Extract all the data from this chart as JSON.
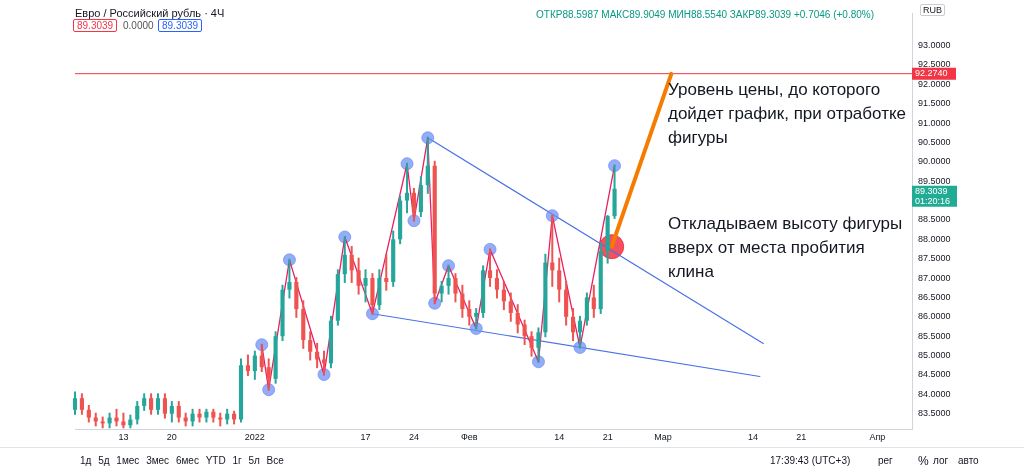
{
  "chart_data": {
    "type": "candlestick",
    "title": "Евро / Российский рубль · 4Ч",
    "x": [
      "2021-12-06",
      "2021-12-07",
      "2021-12-08",
      "2021-12-09",
      "2021-12-10",
      "2021-12-11",
      "2021-12-12",
      "2021-12-13",
      "2021-12-14",
      "2021-12-15",
      "2021-12-16",
      "2021-12-17",
      "2021-12-18",
      "2021-12-19",
      "2021-12-20",
      "2021-12-21",
      "2021-12-22",
      "2021-12-23",
      "2021-12-24",
      "2021-12-25",
      "2021-12-26",
      "2021-12-27",
      "2021-12-28",
      "2021-12-29",
      "2021-12-30",
      "2021-12-31",
      "2022-01-01",
      "2022-01-02",
      "2022-01-03",
      "2022-01-04",
      "2022-01-05",
      "2022-01-06",
      "2022-01-07",
      "2022-01-08",
      "2022-01-09",
      "2022-01-10",
      "2022-01-11",
      "2022-01-12",
      "2022-01-13",
      "2022-01-14",
      "2022-01-15",
      "2022-01-16",
      "2022-01-17",
      "2022-01-18",
      "2022-01-19",
      "2022-01-20",
      "2022-01-21",
      "2022-01-22",
      "2022-01-23",
      "2022-01-24",
      "2022-01-25",
      "2022-01-26",
      "2022-01-27",
      "2022-01-28",
      "2022-01-29",
      "2022-01-30",
      "2022-01-31",
      "2022-02-01",
      "2022-02-02",
      "2022-02-03",
      "2022-02-04",
      "2022-02-05",
      "2022-02-06",
      "2022-02-07",
      "2022-02-08",
      "2022-02-09",
      "2022-02-10",
      "2022-02-11",
      "2022-02-12",
      "2022-02-13",
      "2022-02-14",
      "2022-02-15",
      "2022-02-16",
      "2022-02-17",
      "2022-02-18",
      "2022-02-19",
      "2022-02-20",
      "2022-02-21",
      "2022-02-22"
    ],
    "ohlc": [
      [
        83.6,
        84.05,
        83.5,
        83.9
      ],
      [
        83.9,
        84.0,
        83.5,
        83.6
      ],
      [
        83.6,
        83.7,
        83.3,
        83.4
      ],
      [
        83.4,
        83.5,
        83.2,
        83.3
      ],
      [
        83.3,
        83.4,
        83.15,
        83.25
      ],
      [
        83.25,
        83.5,
        83.15,
        83.4
      ],
      [
        83.4,
        83.6,
        83.2,
        83.3
      ],
      [
        83.3,
        83.5,
        83.15,
        83.2
      ],
      [
        83.2,
        83.45,
        83.15,
        83.35
      ],
      [
        83.35,
        83.8,
        83.25,
        83.7
      ],
      [
        83.7,
        84.0,
        83.6,
        83.9
      ],
      [
        83.9,
        84.0,
        83.5,
        83.6
      ],
      [
        83.6,
        84.0,
        83.5,
        83.9
      ],
      [
        83.9,
        84.0,
        83.4,
        83.5
      ],
      [
        83.5,
        83.8,
        83.3,
        83.7
      ],
      [
        83.7,
        83.8,
        83.3,
        83.4
      ],
      [
        83.4,
        83.5,
        83.2,
        83.3
      ],
      [
        83.3,
        83.6,
        83.2,
        83.5
      ],
      [
        83.5,
        83.6,
        83.3,
        83.4
      ],
      [
        83.4,
        83.6,
        83.3,
        83.55
      ],
      [
        83.55,
        83.6,
        83.3,
        83.4
      ],
      [
        83.4,
        83.5,
        83.2,
        83.35
      ],
      [
        83.35,
        83.6,
        83.25,
        83.5
      ],
      [
        83.5,
        83.55,
        83.25,
        83.35
      ],
      [
        83.35,
        84.9,
        83.3,
        84.75
      ],
      [
        84.75,
        85.0,
        84.5,
        84.6
      ],
      [
        84.6,
        85.1,
        84.4,
        85.0
      ],
      [
        85.0,
        85.28,
        84.6,
        84.7
      ],
      [
        84.7,
        84.9,
        84.12,
        84.4
      ],
      [
        84.4,
        85.6,
        84.3,
        85.5
      ],
      [
        85.5,
        86.8,
        85.4,
        86.7
      ],
      [
        86.7,
        87.47,
        86.5,
        86.9
      ],
      [
        86.9,
        87.0,
        86.0,
        86.2
      ],
      [
        86.2,
        86.4,
        85.2,
        85.4
      ],
      [
        85.4,
        85.6,
        84.9,
        85.1
      ],
      [
        85.1,
        85.3,
        84.7,
        84.9
      ],
      [
        84.9,
        85.1,
        84.51,
        84.8
      ],
      [
        84.8,
        86.0,
        84.7,
        85.9
      ],
      [
        85.9,
        87.2,
        85.8,
        87.1
      ],
      [
        87.1,
        88.06,
        86.9,
        87.6
      ],
      [
        87.6,
        87.8,
        86.9,
        87.2
      ],
      [
        87.2,
        87.5,
        86.6,
        86.8
      ],
      [
        86.8,
        87.2,
        86.4,
        87.0
      ],
      [
        87.0,
        87.1,
        86.08,
        86.3
      ],
      [
        86.3,
        87.2,
        86.2,
        87.0
      ],
      [
        87.0,
        87.6,
        86.7,
        86.9
      ],
      [
        86.9,
        88.2,
        86.8,
        88.0
      ],
      [
        88.0,
        89.1,
        87.9,
        89.0
      ],
      [
        89.0,
        89.95,
        88.7,
        89.2
      ],
      [
        89.2,
        89.3,
        88.48,
        88.7
      ],
      [
        88.7,
        89.6,
        88.6,
        89.4
      ],
      [
        89.4,
        90.62,
        89.2,
        89.9
      ],
      [
        89.9,
        90.0,
        86.35,
        86.6
      ],
      [
        86.6,
        86.9,
        86.4,
        86.8
      ],
      [
        86.8,
        87.32,
        86.6,
        87.0
      ],
      [
        87.0,
        87.1,
        86.4,
        86.6
      ],
      [
        86.6,
        86.8,
        86.0,
        86.2
      ],
      [
        86.2,
        86.4,
        85.8,
        86.0
      ],
      [
        86.0,
        86.2,
        85.7,
        86.1
      ],
      [
        86.1,
        87.3,
        86.0,
        87.2
      ],
      [
        87.2,
        87.74,
        86.8,
        87.0
      ],
      [
        87.0,
        87.2,
        86.5,
        86.7
      ],
      [
        86.7,
        86.9,
        86.2,
        86.4
      ],
      [
        86.4,
        86.6,
        85.9,
        86.1
      ],
      [
        86.1,
        86.3,
        85.6,
        85.8
      ],
      [
        85.8,
        85.9,
        85.3,
        85.5
      ],
      [
        85.5,
        85.6,
        85.0,
        85.2
      ],
      [
        85.2,
        85.7,
        84.84,
        85.6
      ],
      [
        85.6,
        87.6,
        85.5,
        87.4
      ],
      [
        87.4,
        88.61,
        86.8,
        87.2
      ],
      [
        87.2,
        87.5,
        86.4,
        86.7
      ],
      [
        86.7,
        86.9,
        85.8,
        86.0
      ],
      [
        86.0,
        86.2,
        85.4,
        85.6
      ],
      [
        85.6,
        86.0,
        85.21,
        85.9
      ],
      [
        85.9,
        86.6,
        85.8,
        86.5
      ],
      [
        86.5,
        86.8,
        86.0,
        86.2
      ],
      [
        86.2,
        87.9,
        86.1,
        87.7
      ],
      [
        87.7,
        88.6,
        87.4,
        88.6
      ],
      [
        88.5987,
        89.9049,
        88.554,
        89.3039
      ]
    ],
    "series": [
      {
        "type": "line",
        "color": "#e91e63",
        "x": [
          "2022-01-02",
          "2022-01-03",
          "2022-01-06",
          "2022-01-11",
          "2022-01-14",
          "2022-01-18",
          "2022-01-23",
          "2022-01-24",
          "2022-01-26",
          "2022-01-27",
          "2022-01-29",
          "2022-02-02",
          "2022-02-04",
          "2022-02-11",
          "2022-02-13",
          "2022-02-17",
          "2022-02-22"
        ],
        "values": [
          85.28,
          84.12,
          87.47,
          84.51,
          88.06,
          86.08,
          89.95,
          88.48,
          90.62,
          86.35,
          87.32,
          85.7,
          87.74,
          84.84,
          88.61,
          85.21,
          89.9
        ]
      },
      {
        "type": "scatter",
        "color": "#6d8ff5",
        "marker": "circle",
        "x": [
          "2022-01-02",
          "2022-01-03",
          "2022-01-06",
          "2022-01-11",
          "2022-01-14",
          "2022-01-18",
          "2022-01-23",
          "2022-01-24",
          "2022-01-26",
          "2022-01-27",
          "2022-01-29",
          "2022-02-02",
          "2022-02-04",
          "2022-02-11",
          "2022-02-13",
          "2022-02-17",
          "2022-02-22"
        ],
        "values": [
          85.28,
          84.12,
          87.47,
          84.51,
          88.06,
          86.08,
          89.95,
          88.48,
          90.62,
          86.35,
          87.32,
          85.7,
          87.74,
          84.84,
          88.61,
          85.21,
          89.9
        ]
      },
      {
        "type": "line",
        "color": "#4a72e8",
        "x": [
          "2022-01-26",
          "2022-03-15T12:00"
        ],
        "values": [
          90.62,
          85.31
        ]
      },
      {
        "type": "line",
        "color": "#4a72e8",
        "x": [
          "2022-01-18",
          "2022-03-15T00:00"
        ],
        "values": [
          86.08,
          84.46
        ]
      },
      {
        "type": "line",
        "color": "#f57c00",
        "x": [
          "2022-02-21T14:00",
          "2022-03-02T05:00"
        ],
        "values": [
          87.81,
          92.27
        ]
      },
      {
        "type": "bubble",
        "color": "#f23645",
        "x": [
          "2022-02-21T14:00"
        ],
        "values": [
          87.81
        ],
        "sizes": [
          1
        ]
      }
    ],
    "ref_lines": [
      {
        "axis": "y",
        "value": 92.274,
        "label": "92.2740",
        "color": "#f23645"
      }
    ],
    "xlim": [
      "2021-12-06",
      "2022-04-06"
    ],
    "xticks": [
      {
        "value": "2021-12-13",
        "label": "13"
      },
      {
        "value": "2021-12-20",
        "label": "20"
      },
      {
        "value": "2022-01-01",
        "label": "2022"
      },
      {
        "value": "2022-01-17",
        "label": "17"
      },
      {
        "value": "2022-01-24",
        "label": "24"
      },
      {
        "value": "2022-02-01",
        "label": "Фев"
      },
      {
        "value": "2022-02-14",
        "label": "14"
      },
      {
        "value": "2022-02-21",
        "label": "21"
      },
      {
        "value": "2022-03-01",
        "label": "Мар"
      },
      {
        "value": "2022-03-14",
        "label": "14"
      },
      {
        "value": "2022-03-21",
        "label": "21"
      },
      {
        "value": "2022-04-01",
        "label": "Апр"
      }
    ],
    "ylim": [
      83.1,
      93.84
    ],
    "yticks": [
      {
        "value": 83.5,
        "label": "83.5000"
      },
      {
        "value": 84,
        "label": "84.0000"
      },
      {
        "value": 84.5,
        "label": "84.5000"
      },
      {
        "value": 85,
        "label": "85.0000"
      },
      {
        "value": 85.5,
        "label": "85.5000"
      },
      {
        "value": 86,
        "label": "86.0000"
      },
      {
        "value": 86.5,
        "label": "86.5000"
      },
      {
        "value": 87,
        "label": "87.0000"
      },
      {
        "value": 87.5,
        "label": "87.5000"
      },
      {
        "value": 88,
        "label": "88.0000"
      },
      {
        "value": 88.5,
        "label": "88.5000"
      },
      {
        "value": 89.5,
        "label": "89.5000"
      },
      {
        "value": 90,
        "label": "90.0000"
      },
      {
        "value": 90.5,
        "label": "90.5000"
      },
      {
        "value": 91,
        "label": "91.0000"
      },
      {
        "value": 91.5,
        "label": "91.5000"
      },
      {
        "value": 92,
        "label": "92.0000"
      },
      {
        "value": 92.5,
        "label": "92.5000"
      },
      {
        "value": 93,
        "label": "93.0000"
      }
    ],
    "legend": false,
    "annotations": [
      "Уровень цены, до которого дойдет график, при отработке фигуры",
      "Откладываем высоту фигуры вверх от места пробития клина",
      "ОТКР88.5987 МАКС89.9049 МИН88.5540 ЗАКР89.3039 +0.7046 (+0.80%)",
      "89.3039",
      "0.0000",
      "89.3039",
      "RUB",
      "89.3039",
      "01:20:16",
      "1д 5д 1мес 3мес 6мес YTD 1г 5л Все",
      "17:39:43 (UTC+3)",
      "рег",
      "%",
      "лог",
      "авто"
    ]
  }
}
